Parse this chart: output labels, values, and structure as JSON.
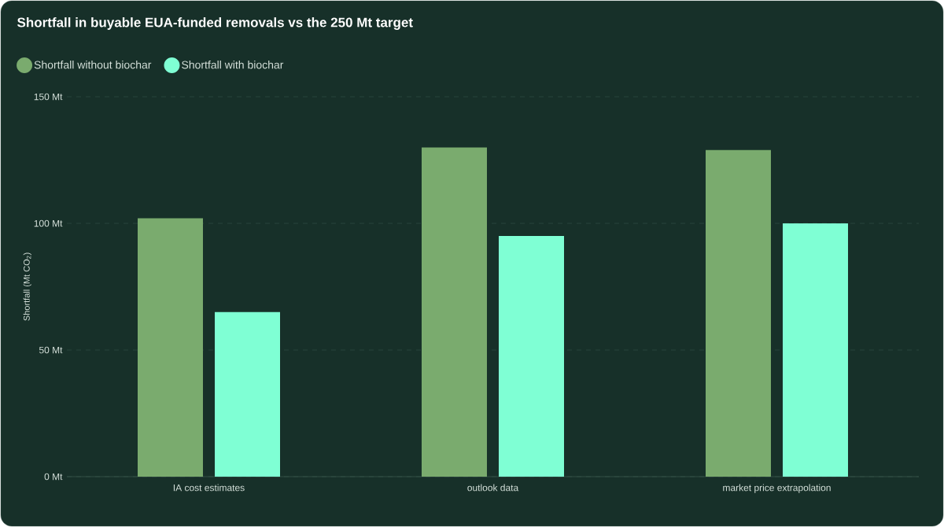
{
  "chart_data": {
    "type": "bar",
    "title": "Shortfall in buyable EUA-funded removals vs the 250 Mt target",
    "ylabel": "Shortfall (Mt CO$_{2}$)",
    "categories": [
      "IA cost estimates",
      "outlook data",
      "market price extrapolation"
    ],
    "series": [
      {
        "name": "Shortfall without biochar",
        "color": "#7aab6e",
        "values": [
          102,
          130,
          129
        ]
      },
      {
        "name": "Shortfall with biochar",
        "color": "#7fffd4",
        "values": [
          65,
          95,
          100
        ]
      }
    ],
    "ylim": [
      0,
      150
    ],
    "yticks": [
      {
        "value": 0,
        "label": "0 Mt"
      },
      {
        "value": 50,
        "label": "50 Mt"
      },
      {
        "value": 100,
        "label": "100 Mt"
      },
      {
        "value": 150,
        "label": "150 Mt"
      }
    ],
    "grid": "y",
    "legend": "top left"
  }
}
